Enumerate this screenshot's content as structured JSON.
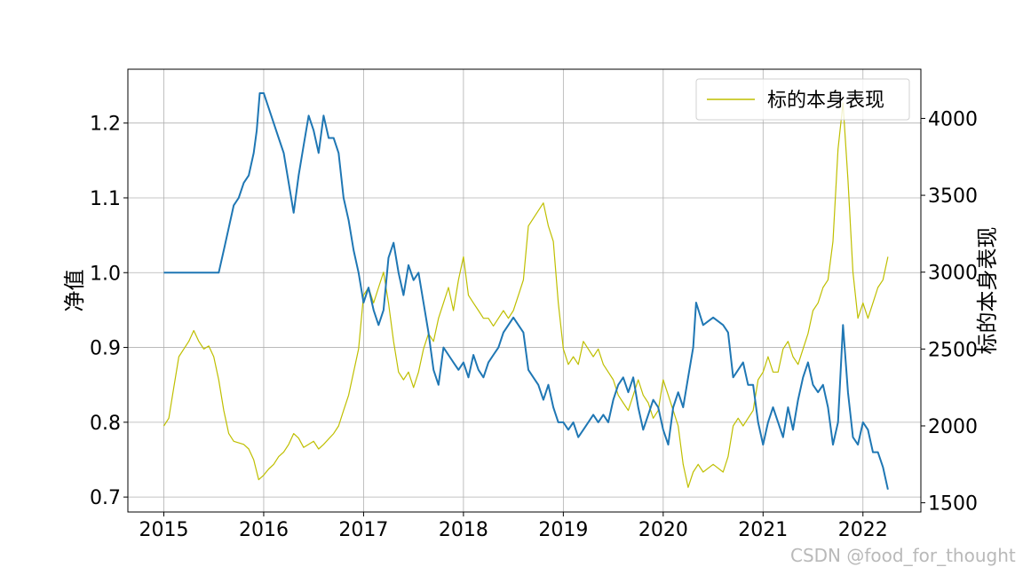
{
  "chart_data": {
    "type": "line",
    "title": "",
    "xlabel": "",
    "ylabel_left": "净值",
    "ylabel_right": "标的本身表现",
    "x_ticks": [
      "2015",
      "2016",
      "2017",
      "2018",
      "2019",
      "2020",
      "2021",
      "2022"
    ],
    "y_left_ticks": [
      "0.7",
      "0.8",
      "0.9",
      "1.0",
      "1.1",
      "1.2"
    ],
    "y_right_ticks": [
      "1500",
      "2000",
      "2500",
      "3000",
      "3500",
      "4000"
    ],
    "xlim": [
      2014.64,
      2022.58
    ],
    "ylim_left": [
      0.68,
      1.272
    ],
    "ylim_right": [
      1440,
      4320
    ],
    "grid": true,
    "legend_position": "top-right",
    "legend_entries": [
      "标的本身表现"
    ],
    "colors": {
      "left_series": "#1f77b4",
      "right_series": "#bfbf00",
      "grid": "#b0b0b0"
    },
    "series": [
      {
        "axis": "left",
        "color": "#1f77b4",
        "points": [
          [
            2015.0,
            1.0
          ],
          [
            2015.1,
            1.0
          ],
          [
            2015.2,
            1.0
          ],
          [
            2015.3,
            1.0
          ],
          [
            2015.4,
            1.0
          ],
          [
            2015.5,
            1.0
          ],
          [
            2015.55,
            1.0
          ],
          [
            2015.6,
            1.03
          ],
          [
            2015.65,
            1.06
          ],
          [
            2015.7,
            1.09
          ],
          [
            2015.75,
            1.1
          ],
          [
            2015.8,
            1.12
          ],
          [
            2015.85,
            1.13
          ],
          [
            2015.9,
            1.16
          ],
          [
            2015.93,
            1.19
          ],
          [
            2015.96,
            1.24
          ],
          [
            2016.0,
            1.24
          ],
          [
            2016.05,
            1.22
          ],
          [
            2016.1,
            1.2
          ],
          [
            2016.15,
            1.18
          ],
          [
            2016.2,
            1.16
          ],
          [
            2016.25,
            1.12
          ],
          [
            2016.3,
            1.08
          ],
          [
            2016.35,
            1.13
          ],
          [
            2016.4,
            1.17
          ],
          [
            2016.45,
            1.21
          ],
          [
            2016.5,
            1.19
          ],
          [
            2016.55,
            1.16
          ],
          [
            2016.6,
            1.21
          ],
          [
            2016.65,
            1.18
          ],
          [
            2016.7,
            1.18
          ],
          [
            2016.75,
            1.16
          ],
          [
            2016.8,
            1.1
          ],
          [
            2016.85,
            1.07
          ],
          [
            2016.9,
            1.03
          ],
          [
            2016.95,
            1.0
          ],
          [
            2017.0,
            0.96
          ],
          [
            2017.05,
            0.98
          ],
          [
            2017.1,
            0.95
          ],
          [
            2017.15,
            0.93
          ],
          [
            2017.2,
            0.95
          ],
          [
            2017.25,
            1.02
          ],
          [
            2017.3,
            1.04
          ],
          [
            2017.35,
            1.0
          ],
          [
            2017.4,
            0.97
          ],
          [
            2017.45,
            1.01
          ],
          [
            2017.5,
            0.99
          ],
          [
            2017.55,
            1.0
          ],
          [
            2017.6,
            0.96
          ],
          [
            2017.65,
            0.92
          ],
          [
            2017.7,
            0.87
          ],
          [
            2017.75,
            0.85
          ],
          [
            2017.8,
            0.9
          ],
          [
            2017.85,
            0.89
          ],
          [
            2017.9,
            0.88
          ],
          [
            2017.95,
            0.87
          ],
          [
            2018.0,
            0.88
          ],
          [
            2018.05,
            0.86
          ],
          [
            2018.1,
            0.89
          ],
          [
            2018.15,
            0.87
          ],
          [
            2018.2,
            0.86
          ],
          [
            2018.25,
            0.88
          ],
          [
            2018.3,
            0.89
          ],
          [
            2018.35,
            0.9
          ],
          [
            2018.4,
            0.92
          ],
          [
            2018.45,
            0.93
          ],
          [
            2018.5,
            0.94
          ],
          [
            2018.55,
            0.93
          ],
          [
            2018.6,
            0.92
          ],
          [
            2018.65,
            0.87
          ],
          [
            2018.7,
            0.86
          ],
          [
            2018.75,
            0.85
          ],
          [
            2018.8,
            0.83
          ],
          [
            2018.85,
            0.85
          ],
          [
            2018.9,
            0.82
          ],
          [
            2018.95,
            0.8
          ],
          [
            2019.0,
            0.8
          ],
          [
            2019.05,
            0.79
          ],
          [
            2019.1,
            0.8
          ],
          [
            2019.15,
            0.78
          ],
          [
            2019.2,
            0.79
          ],
          [
            2019.25,
            0.8
          ],
          [
            2019.3,
            0.81
          ],
          [
            2019.35,
            0.8
          ],
          [
            2019.4,
            0.81
          ],
          [
            2019.45,
            0.8
          ],
          [
            2019.5,
            0.83
          ],
          [
            2019.55,
            0.85
          ],
          [
            2019.6,
            0.86
          ],
          [
            2019.65,
            0.84
          ],
          [
            2019.7,
            0.86
          ],
          [
            2019.75,
            0.82
          ],
          [
            2019.8,
            0.79
          ],
          [
            2019.85,
            0.81
          ],
          [
            2019.9,
            0.83
          ],
          [
            2019.95,
            0.82
          ],
          [
            2020.0,
            0.79
          ],
          [
            2020.05,
            0.77
          ],
          [
            2020.1,
            0.82
          ],
          [
            2020.15,
            0.84
          ],
          [
            2020.2,
            0.82
          ],
          [
            2020.25,
            0.86
          ],
          [
            2020.3,
            0.9
          ],
          [
            2020.33,
            0.96
          ],
          [
            2020.4,
            0.93
          ],
          [
            2020.5,
            0.94
          ],
          [
            2020.6,
            0.93
          ],
          [
            2020.65,
            0.92
          ],
          [
            2020.7,
            0.86
          ],
          [
            2020.8,
            0.88
          ],
          [
            2020.85,
            0.85
          ],
          [
            2020.9,
            0.85
          ],
          [
            2020.95,
            0.8
          ],
          [
            2021.0,
            0.77
          ],
          [
            2021.05,
            0.8
          ],
          [
            2021.1,
            0.82
          ],
          [
            2021.15,
            0.8
          ],
          [
            2021.2,
            0.78
          ],
          [
            2021.25,
            0.82
          ],
          [
            2021.3,
            0.79
          ],
          [
            2021.35,
            0.83
          ],
          [
            2021.4,
            0.86
          ],
          [
            2021.45,
            0.88
          ],
          [
            2021.5,
            0.85
          ],
          [
            2021.55,
            0.84
          ],
          [
            2021.6,
            0.85
          ],
          [
            2021.65,
            0.82
          ],
          [
            2021.7,
            0.77
          ],
          [
            2021.75,
            0.8
          ],
          [
            2021.8,
            0.93
          ],
          [
            2021.85,
            0.84
          ],
          [
            2021.9,
            0.78
          ],
          [
            2021.95,
            0.77
          ],
          [
            2022.0,
            0.8
          ],
          [
            2022.05,
            0.79
          ],
          [
            2022.1,
            0.76
          ],
          [
            2022.15,
            0.76
          ],
          [
            2022.2,
            0.74
          ],
          [
            2022.25,
            0.71
          ]
        ]
      },
      {
        "axis": "right",
        "color": "#bfbf00",
        "points": [
          [
            2015.0,
            2000
          ],
          [
            2015.05,
            2050
          ],
          [
            2015.1,
            2250
          ],
          [
            2015.15,
            2450
          ],
          [
            2015.2,
            2500
          ],
          [
            2015.25,
            2550
          ],
          [
            2015.3,
            2620
          ],
          [
            2015.35,
            2550
          ],
          [
            2015.4,
            2500
          ],
          [
            2015.45,
            2520
          ],
          [
            2015.5,
            2450
          ],
          [
            2015.55,
            2300
          ],
          [
            2015.6,
            2100
          ],
          [
            2015.65,
            1950
          ],
          [
            2015.7,
            1900
          ],
          [
            2015.8,
            1880
          ],
          [
            2015.85,
            1850
          ],
          [
            2015.9,
            1780
          ],
          [
            2015.95,
            1650
          ],
          [
            2016.0,
            1680
          ],
          [
            2016.05,
            1720
          ],
          [
            2016.1,
            1750
          ],
          [
            2016.15,
            1800
          ],
          [
            2016.2,
            1830
          ],
          [
            2016.25,
            1880
          ],
          [
            2016.3,
            1950
          ],
          [
            2016.35,
            1920
          ],
          [
            2016.4,
            1860
          ],
          [
            2016.5,
            1900
          ],
          [
            2016.55,
            1850
          ],
          [
            2016.6,
            1880
          ],
          [
            2016.7,
            1950
          ],
          [
            2016.75,
            2000
          ],
          [
            2016.8,
            2100
          ],
          [
            2016.85,
            2200
          ],
          [
            2016.9,
            2350
          ],
          [
            2016.95,
            2500
          ],
          [
            2017.0,
            2850
          ],
          [
            2017.05,
            2900
          ],
          [
            2017.1,
            2800
          ],
          [
            2017.15,
            2900
          ],
          [
            2017.2,
            3000
          ],
          [
            2017.25,
            2800
          ],
          [
            2017.3,
            2550
          ],
          [
            2017.35,
            2350
          ],
          [
            2017.4,
            2300
          ],
          [
            2017.45,
            2350
          ],
          [
            2017.5,
            2250
          ],
          [
            2017.55,
            2350
          ],
          [
            2017.6,
            2500
          ],
          [
            2017.65,
            2600
          ],
          [
            2017.7,
            2550
          ],
          [
            2017.75,
            2700
          ],
          [
            2017.8,
            2800
          ],
          [
            2017.85,
            2900
          ],
          [
            2017.9,
            2750
          ],
          [
            2017.95,
            2950
          ],
          [
            2018.0,
            3100
          ],
          [
            2018.05,
            2850
          ],
          [
            2018.1,
            2800
          ],
          [
            2018.15,
            2750
          ],
          [
            2018.2,
            2700
          ],
          [
            2018.25,
            2700
          ],
          [
            2018.3,
            2650
          ],
          [
            2018.35,
            2700
          ],
          [
            2018.4,
            2750
          ],
          [
            2018.45,
            2700
          ],
          [
            2018.5,
            2750
          ],
          [
            2018.55,
            2850
          ],
          [
            2018.6,
            2950
          ],
          [
            2018.65,
            3300
          ],
          [
            2018.7,
            3350
          ],
          [
            2018.75,
            3400
          ],
          [
            2018.8,
            3450
          ],
          [
            2018.85,
            3300
          ],
          [
            2018.9,
            3200
          ],
          [
            2018.95,
            2800
          ],
          [
            2019.0,
            2500
          ],
          [
            2019.05,
            2400
          ],
          [
            2019.1,
            2450
          ],
          [
            2019.15,
            2400
          ],
          [
            2019.2,
            2550
          ],
          [
            2019.25,
            2500
          ],
          [
            2019.3,
            2450
          ],
          [
            2019.35,
            2500
          ],
          [
            2019.4,
            2400
          ],
          [
            2019.45,
            2350
          ],
          [
            2019.5,
            2300
          ],
          [
            2019.55,
            2200
          ],
          [
            2019.6,
            2150
          ],
          [
            2019.65,
            2100
          ],
          [
            2019.7,
            2200
          ],
          [
            2019.75,
            2300
          ],
          [
            2019.8,
            2200
          ],
          [
            2019.85,
            2150
          ],
          [
            2019.9,
            2050
          ],
          [
            2019.95,
            2100
          ],
          [
            2020.0,
            2300
          ],
          [
            2020.05,
            2200
          ],
          [
            2020.1,
            2100
          ],
          [
            2020.15,
            2000
          ],
          [
            2020.2,
            1750
          ],
          [
            2020.25,
            1600
          ],
          [
            2020.3,
            1700
          ],
          [
            2020.35,
            1750
          ],
          [
            2020.4,
            1700
          ],
          [
            2020.5,
            1750
          ],
          [
            2020.6,
            1700
          ],
          [
            2020.65,
            1800
          ],
          [
            2020.7,
            2000
          ],
          [
            2020.75,
            2050
          ],
          [
            2020.8,
            2000
          ],
          [
            2020.85,
            2050
          ],
          [
            2020.9,
            2100
          ],
          [
            2020.95,
            2300
          ],
          [
            2021.0,
            2350
          ],
          [
            2021.05,
            2450
          ],
          [
            2021.1,
            2350
          ],
          [
            2021.15,
            2350
          ],
          [
            2021.2,
            2500
          ],
          [
            2021.25,
            2550
          ],
          [
            2021.3,
            2450
          ],
          [
            2021.35,
            2400
          ],
          [
            2021.4,
            2500
          ],
          [
            2021.45,
            2600
          ],
          [
            2021.5,
            2750
          ],
          [
            2021.55,
            2800
          ],
          [
            2021.6,
            2900
          ],
          [
            2021.65,
            2950
          ],
          [
            2021.7,
            3200
          ],
          [
            2021.75,
            3800
          ],
          [
            2021.8,
            4100
          ],
          [
            2021.85,
            3600
          ],
          [
            2021.9,
            3000
          ],
          [
            2021.95,
            2700
          ],
          [
            2022.0,
            2800
          ],
          [
            2022.05,
            2700
          ],
          [
            2022.1,
            2800
          ],
          [
            2022.15,
            2900
          ],
          [
            2022.2,
            2950
          ],
          [
            2022.25,
            3100
          ]
        ]
      }
    ]
  },
  "watermark": "CSDN @food_for_thought"
}
